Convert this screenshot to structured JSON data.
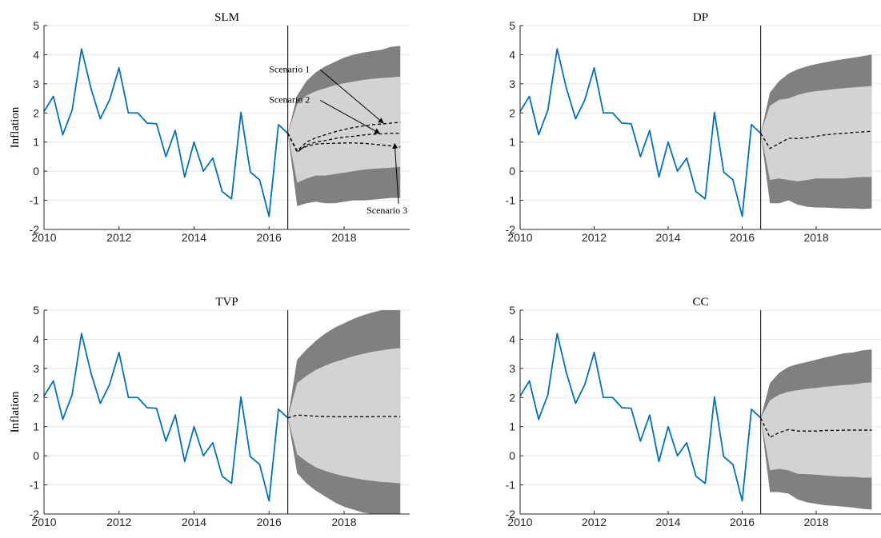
{
  "colors": {
    "history": "#0072BD",
    "outer_band": "#808080",
    "inner_band": "#d3d3d3",
    "median": "#000000",
    "axis": "#262626",
    "grid": "#e6e6e6"
  },
  "chart_data": [
    {
      "type": "line",
      "title": "SLM",
      "ylabel": "Inflation",
      "xlim": [
        2010,
        2019.75
      ],
      "ylim": [
        -2,
        5
      ],
      "xticks": [
        "2010",
        "2012",
        "2014",
        "2016",
        "2018"
      ],
      "yticks": [
        "5",
        "4",
        "3",
        "2",
        "1",
        "0",
        "-1",
        "-2"
      ],
      "grid": "horizontal",
      "forecast_origin": 2016.5,
      "history": {
        "x": [
          2010,
          2010.25,
          2010.5,
          2010.75,
          2011,
          2011.25,
          2011.5,
          2011.75,
          2012,
          2012.25,
          2012.5,
          2012.75,
          2013,
          2013.25,
          2013.5,
          2013.75,
          2014,
          2014.25,
          2014.5,
          2014.75,
          2015,
          2015.25,
          2015.5,
          2015.75,
          2016,
          2016.25,
          2016.5
        ],
        "y": [
          2.05,
          2.57,
          1.25,
          2.1,
          4.2,
          2.85,
          1.8,
          2.45,
          3.55,
          2.0,
          2.0,
          1.65,
          1.63,
          0.5,
          1.4,
          -0.2,
          1.0,
          0.0,
          0.45,
          -0.7,
          -0.95,
          2.02,
          -0.03,
          -0.3,
          -1.55,
          1.6,
          1.3
        ]
      },
      "forecast_x": [
        2016.5,
        2016.75,
        2017,
        2017.25,
        2017.5,
        2017.75,
        2018,
        2018.25,
        2018.5,
        2018.75,
        2019,
        2019.25,
        2019.5
      ],
      "band_outer": {
        "upper": [
          1.3,
          2.6,
          3.1,
          3.4,
          3.6,
          3.75,
          3.9,
          4.0,
          4.07,
          4.12,
          4.17,
          4.27,
          4.3
        ],
        "lower": [
          1.3,
          -1.2,
          -1.1,
          -1.05,
          -1.1,
          -1.1,
          -1.05,
          -1.0,
          -1.0,
          -0.98,
          -0.95,
          -0.92,
          -0.92
        ]
      },
      "band_inner": {
        "upper": [
          1.3,
          2.3,
          2.6,
          2.75,
          2.85,
          2.95,
          3.02,
          3.08,
          3.13,
          3.17,
          3.2,
          3.22,
          3.25
        ],
        "lower": [
          1.3,
          -0.4,
          -0.25,
          -0.15,
          -0.15,
          -0.1,
          -0.05,
          0.0,
          0.05,
          0.08,
          0.1,
          0.12,
          0.15
        ]
      },
      "medians": [
        {
          "y": [
            1.3,
            0.7,
            1.0,
            1.15,
            1.25,
            1.35,
            1.43,
            1.5,
            1.55,
            1.6,
            1.62,
            1.65,
            1.68
          ]
        },
        {
          "y": [
            1.3,
            0.65,
            0.9,
            1.0,
            1.05,
            1.12,
            1.17,
            1.2,
            1.24,
            1.27,
            1.28,
            1.3,
            1.3
          ]
        },
        {
          "y": [
            1.3,
            0.7,
            0.85,
            0.93,
            0.95,
            0.96,
            0.97,
            0.97,
            0.96,
            0.93,
            0.9,
            0.87,
            0.83
          ]
        }
      ],
      "annotations": [
        {
          "text": "Scenario 1",
          "label_at": [
            2016.0,
            3.4
          ],
          "arrow_to": [
            2019.05,
            1.65
          ]
        },
        {
          "text": "Scenario 2",
          "label_at": [
            2016.0,
            2.35
          ],
          "arrow_to": [
            2018.95,
            1.3
          ]
        },
        {
          "text": "Scenario 3",
          "label_at": [
            2018.6,
            -1.45
          ],
          "arrow_to": [
            2019.35,
            0.95
          ]
        }
      ]
    },
    {
      "type": "line",
      "title": "DP",
      "ylabel": "",
      "xlim": [
        2010,
        2019.75
      ],
      "ylim": [
        -2,
        5
      ],
      "xticks": [
        "2010",
        "2012",
        "2014",
        "2016",
        "2018"
      ],
      "yticks": [
        "5",
        "4",
        "3",
        "2",
        "1",
        "0",
        "-1",
        "-2"
      ],
      "grid": "horizontal",
      "forecast_origin": 2016.5,
      "history": {
        "x": [
          2010,
          2010.25,
          2010.5,
          2010.75,
          2011,
          2011.25,
          2011.5,
          2011.75,
          2012,
          2012.25,
          2012.5,
          2012.75,
          2013,
          2013.25,
          2013.5,
          2013.75,
          2014,
          2014.25,
          2014.5,
          2014.75,
          2015,
          2015.25,
          2015.5,
          2015.75,
          2016,
          2016.25,
          2016.5
        ],
        "y": [
          2.05,
          2.57,
          1.25,
          2.1,
          4.2,
          2.85,
          1.8,
          2.45,
          3.55,
          2.0,
          2.0,
          1.65,
          1.63,
          0.5,
          1.4,
          -0.2,
          1.0,
          0.0,
          0.45,
          -0.7,
          -0.95,
          2.02,
          -0.03,
          -0.3,
          -1.55,
          1.6,
          1.3
        ]
      },
      "forecast_x": [
        2016.5,
        2016.75,
        2017,
        2017.25,
        2017.5,
        2017.75,
        2018,
        2018.25,
        2018.5,
        2018.75,
        2019,
        2019.25,
        2019.5
      ],
      "band_outer": {
        "upper": [
          1.3,
          2.7,
          3.1,
          3.35,
          3.5,
          3.6,
          3.68,
          3.74,
          3.8,
          3.85,
          3.9,
          3.95,
          4.0
        ],
        "lower": [
          1.3,
          -1.1,
          -1.1,
          -1.0,
          -1.15,
          -1.22,
          -1.25,
          -1.25,
          -1.27,
          -1.28,
          -1.28,
          -1.3,
          -1.28
        ]
      },
      "band_inner": {
        "upper": [
          1.3,
          2.25,
          2.45,
          2.5,
          2.62,
          2.7,
          2.75,
          2.78,
          2.82,
          2.85,
          2.88,
          2.9,
          2.92
        ],
        "lower": [
          1.3,
          -0.3,
          -0.25,
          -0.3,
          -0.35,
          -0.3,
          -0.25,
          -0.25,
          -0.25,
          -0.25,
          -0.22,
          -0.2,
          -0.2
        ]
      },
      "medians": [
        {
          "y": [
            1.3,
            0.78,
            0.95,
            1.13,
            1.12,
            1.15,
            1.2,
            1.25,
            1.28,
            1.3,
            1.33,
            1.35,
            1.37
          ]
        }
      ],
      "annotations": []
    },
    {
      "type": "line",
      "title": "TVP",
      "ylabel": "Inflation",
      "xlim": [
        2010,
        2019.75
      ],
      "ylim": [
        -2,
        5
      ],
      "xticks": [
        "2010",
        "2012",
        "2014",
        "2016",
        "2018"
      ],
      "yticks": [
        "5",
        "4",
        "3",
        "2",
        "1",
        "0",
        "-1",
        "-2"
      ],
      "grid": "horizontal",
      "forecast_origin": 2016.5,
      "history": {
        "x": [
          2010,
          2010.25,
          2010.5,
          2010.75,
          2011,
          2011.25,
          2011.5,
          2011.75,
          2012,
          2012.25,
          2012.5,
          2012.75,
          2013,
          2013.25,
          2013.5,
          2013.75,
          2014,
          2014.25,
          2014.5,
          2014.75,
          2015,
          2015.25,
          2015.5,
          2015.75,
          2016,
          2016.25,
          2016.5
        ],
        "y": [
          2.05,
          2.57,
          1.25,
          2.1,
          4.2,
          2.85,
          1.8,
          2.45,
          3.55,
          2.0,
          2.0,
          1.65,
          1.63,
          0.5,
          1.4,
          -0.2,
          1.0,
          0.0,
          0.45,
          -0.7,
          -0.95,
          2.02,
          -0.03,
          -0.3,
          -1.55,
          1.6,
          1.3
        ]
      },
      "forecast_x": [
        2016.5,
        2016.75,
        2017,
        2017.25,
        2017.5,
        2017.75,
        2018,
        2018.25,
        2018.5,
        2018.75,
        2019,
        2019.25,
        2019.5
      ],
      "band_outer": {
        "upper": [
          1.3,
          3.3,
          3.65,
          3.95,
          4.2,
          4.4,
          4.55,
          4.7,
          4.82,
          4.92,
          5.0,
          5.0,
          5.0
        ],
        "lower": [
          1.3,
          -0.6,
          -0.95,
          -1.2,
          -1.4,
          -1.6,
          -1.75,
          -1.85,
          -1.95,
          -2.0,
          -2.0,
          -2.0,
          -2.0
        ]
      },
      "band_inner": {
        "upper": [
          1.3,
          2.5,
          2.75,
          2.95,
          3.1,
          3.22,
          3.32,
          3.42,
          3.5,
          3.57,
          3.62,
          3.67,
          3.7
        ],
        "lower": [
          1.3,
          0.05,
          -0.2,
          -0.4,
          -0.52,
          -0.62,
          -0.7,
          -0.76,
          -0.82,
          -0.86,
          -0.9,
          -0.92,
          -0.95
        ]
      },
      "medians": [
        {
          "y": [
            1.3,
            1.4,
            1.38,
            1.36,
            1.35,
            1.34,
            1.34,
            1.34,
            1.34,
            1.34,
            1.35,
            1.35,
            1.35
          ]
        }
      ],
      "annotations": []
    },
    {
      "type": "line",
      "title": "CC",
      "ylabel": "",
      "xlim": [
        2010,
        2019.75
      ],
      "ylim": [
        -2,
        5
      ],
      "xticks": [
        "2010",
        "2012",
        "2014",
        "2016",
        "2018"
      ],
      "yticks": [
        "5",
        "4",
        "3",
        "2",
        "1",
        "0",
        "-1",
        "-2"
      ],
      "grid": "horizontal",
      "forecast_origin": 2016.5,
      "history": {
        "x": [
          2010,
          2010.25,
          2010.5,
          2010.75,
          2011,
          2011.25,
          2011.5,
          2011.75,
          2012,
          2012.25,
          2012.5,
          2012.75,
          2013,
          2013.25,
          2013.5,
          2013.75,
          2014,
          2014.25,
          2014.5,
          2014.75,
          2015,
          2015.25,
          2015.5,
          2015.75,
          2016,
          2016.25,
          2016.5
        ],
        "y": [
          2.05,
          2.57,
          1.25,
          2.1,
          4.2,
          2.85,
          1.8,
          2.45,
          3.55,
          2.0,
          2.0,
          1.65,
          1.63,
          0.5,
          1.4,
          -0.2,
          1.0,
          0.0,
          0.45,
          -0.7,
          -0.95,
          2.02,
          -0.03,
          -0.3,
          -1.55,
          1.6,
          1.3
        ]
      },
      "forecast_x": [
        2016.5,
        2016.75,
        2017,
        2017.25,
        2017.5,
        2017.75,
        2018,
        2018.25,
        2018.5,
        2018.75,
        2019,
        2019.25,
        2019.5
      ],
      "band_outer": {
        "upper": [
          1.3,
          2.5,
          2.85,
          3.05,
          3.15,
          3.22,
          3.3,
          3.38,
          3.45,
          3.52,
          3.55,
          3.62,
          3.65
        ],
        "lower": [
          1.3,
          -1.25,
          -1.25,
          -1.3,
          -1.5,
          -1.6,
          -1.65,
          -1.7,
          -1.72,
          -1.75,
          -1.78,
          -1.82,
          -1.85
        ]
      },
      "band_inner": {
        "upper": [
          1.3,
          1.9,
          2.1,
          2.2,
          2.25,
          2.3,
          2.33,
          2.37,
          2.4,
          2.43,
          2.45,
          2.5,
          2.52
        ],
        "lower": [
          1.3,
          -0.5,
          -0.45,
          -0.5,
          -0.62,
          -0.63,
          -0.65,
          -0.68,
          -0.7,
          -0.72,
          -0.72,
          -0.75,
          -0.75
        ]
      },
      "medians": [
        {
          "y": [
            1.3,
            0.63,
            0.8,
            0.9,
            0.85,
            0.85,
            0.85,
            0.87,
            0.87,
            0.88,
            0.88,
            0.88,
            0.88
          ]
        }
      ],
      "annotations": []
    }
  ]
}
